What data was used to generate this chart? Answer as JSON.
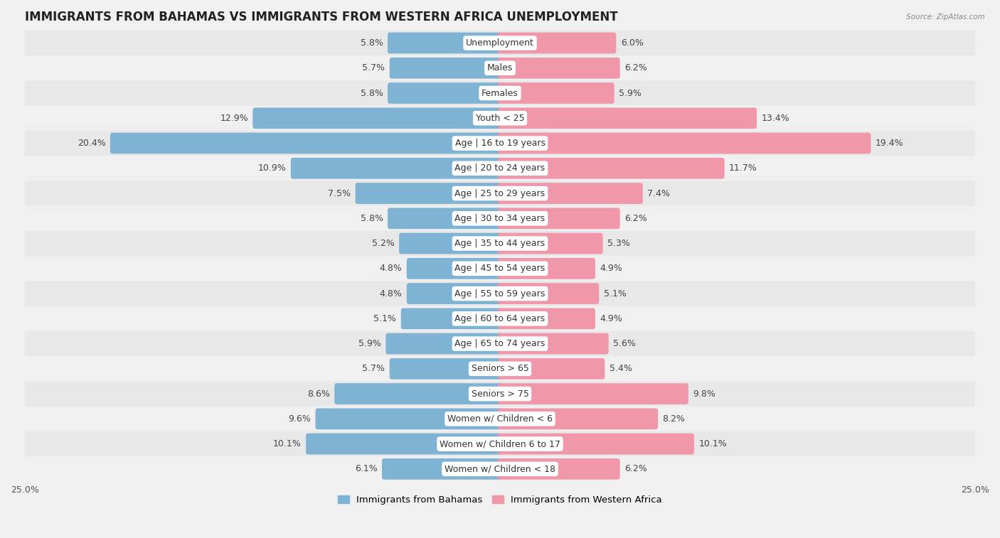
{
  "title": "IMMIGRANTS FROM BAHAMAS VS IMMIGRANTS FROM WESTERN AFRICA UNEMPLOYMENT",
  "source": "Source: ZipAtlas.com",
  "categories": [
    "Unemployment",
    "Males",
    "Females",
    "Youth < 25",
    "Age | 16 to 19 years",
    "Age | 20 to 24 years",
    "Age | 25 to 29 years",
    "Age | 30 to 34 years",
    "Age | 35 to 44 years",
    "Age | 45 to 54 years",
    "Age | 55 to 59 years",
    "Age | 60 to 64 years",
    "Age | 65 to 74 years",
    "Seniors > 65",
    "Seniors > 75",
    "Women w/ Children < 6",
    "Women w/ Children 6 to 17",
    "Women w/ Children < 18"
  ],
  "bahamas_values": [
    5.8,
    5.7,
    5.8,
    12.9,
    20.4,
    10.9,
    7.5,
    5.8,
    5.2,
    4.8,
    4.8,
    5.1,
    5.9,
    5.7,
    8.6,
    9.6,
    10.1,
    6.1
  ],
  "western_africa_values": [
    6.0,
    6.2,
    5.9,
    13.4,
    19.4,
    11.7,
    7.4,
    6.2,
    5.3,
    4.9,
    5.1,
    4.9,
    5.6,
    5.4,
    9.8,
    8.2,
    10.1,
    6.2
  ],
  "bahamas_color": "#7fb3d3",
  "western_africa_color": "#f097aa",
  "row_colors": [
    "#e8e8e8",
    "#f0f0f0"
  ],
  "background_color": "#f0f0f0",
  "xlim": 25.0,
  "legend_bahamas": "Immigrants from Bahamas",
  "legend_western_africa": "Immigrants from Western Africa",
  "title_fontsize": 12,
  "label_fontsize": 9,
  "value_fontsize": 9,
  "bar_height": 0.62
}
